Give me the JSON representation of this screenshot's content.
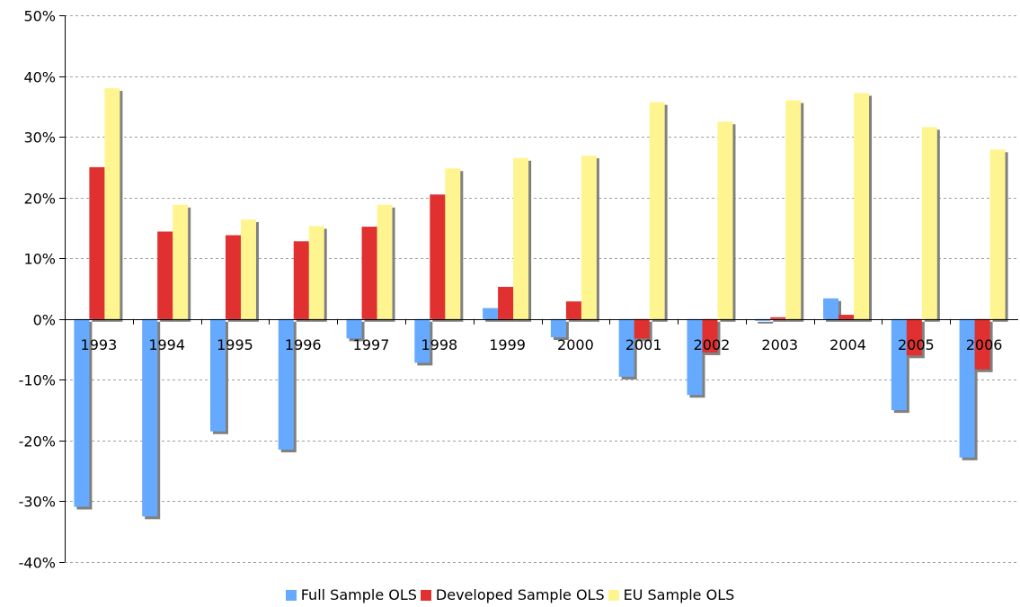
{
  "chart_data": {
    "type": "bar",
    "categories": [
      "1993",
      "1994",
      "1995",
      "1996",
      "1997",
      "1998",
      "1999",
      "2000",
      "2001",
      "2002",
      "2003",
      "2004",
      "2005",
      "2006"
    ],
    "series": [
      {
        "name": "Full Sample OLS",
        "color": "#66AAFF",
        "values": [
          -30.9,
          -32.5,
          -18.5,
          -21.5,
          -3.2,
          -7.2,
          1.8,
          -3.0,
          -9.5,
          -12.5,
          -0.3,
          3.4,
          -15.0,
          -22.8
        ]
      },
      {
        "name": "Developed Sample OLS",
        "color": "#E03030",
        "values": [
          25.0,
          14.4,
          13.8,
          12.8,
          15.2,
          20.5,
          5.3,
          2.9,
          -3.2,
          -5.5,
          0.3,
          0.7,
          -6.0,
          -8.3
        ]
      },
      {
        "name": "EU Sample OLS",
        "color": "#FFF590",
        "values": [
          38.0,
          18.8,
          16.4,
          15.3,
          18.8,
          24.8,
          26.5,
          26.9,
          35.7,
          32.5,
          36.0,
          37.2,
          31.6,
          27.9
        ]
      }
    ],
    "ylim": [
      -40,
      50
    ],
    "yticks": [
      "-40%",
      "-30%",
      "-20%",
      "-10%",
      "0%",
      "10%",
      "20%",
      "30%",
      "40%",
      "50%"
    ],
    "ytick_values": [
      -40,
      -30,
      -20,
      -10,
      0,
      10,
      20,
      30,
      40,
      50
    ],
    "grid": true,
    "legend_position": "bottom",
    "shadow_color": "#808080"
  }
}
